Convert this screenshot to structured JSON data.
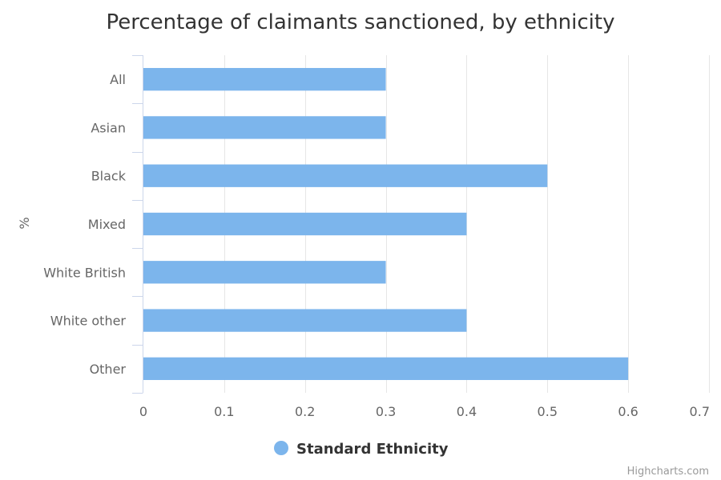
{
  "chart_data": {
    "type": "bar",
    "orientation": "horizontal",
    "title": "Percentage of claimants sanctioned, by ethnicity",
    "ylabel": "%",
    "xlabel": "",
    "categories": [
      "All",
      "Asian",
      "Black",
      "Mixed",
      "White British",
      "White other",
      "Other"
    ],
    "series": [
      {
        "name": "Standard Ethnicity",
        "color": "#7cb5ec",
        "values": [
          0.3,
          0.3,
          0.5,
          0.4,
          0.3,
          0.4,
          0.6
        ]
      }
    ],
    "value_axis": {
      "range": [
        0,
        0.7
      ],
      "ticks": [
        0,
        0.1,
        0.2,
        0.3,
        0.4,
        0.5,
        0.6,
        0.7
      ],
      "tick_labels": [
        "0",
        "0.1",
        "0.2",
        "0.3",
        "0.4",
        "0.5",
        "0.6",
        "0.7"
      ]
    },
    "grid": true,
    "legend": "bottom-center"
  },
  "credits": "Highcharts.com",
  "colors": {
    "series": "#7cb5ec",
    "grid": "#e6e6e6",
    "axis": "#ccd6eb",
    "text": "#666666",
    "title": "#333333"
  }
}
